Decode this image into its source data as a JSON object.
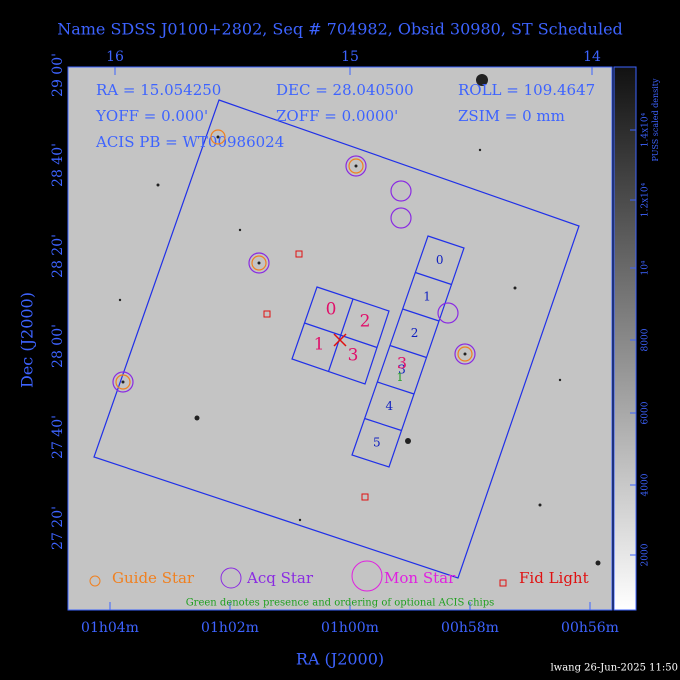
{
  "header": {
    "title": "Name SDSS J0100+2802, Seq # 704982, Obsid 30980, ST Scheduled"
  },
  "axes": {
    "top_ticks": [
      "16",
      "15",
      "14"
    ],
    "left_ticks": [
      "29 00'",
      "28 40'",
      "28 20'",
      "28 00'",
      "27 40'",
      "27 20'"
    ],
    "bottom_ticks": [
      "01h04m",
      "01h02m",
      "01h00m",
      "00h58m",
      "00h56m"
    ],
    "x_label": "RA (J2000)",
    "y_label": "Dec (J2000)"
  },
  "info": [
    [
      "RA = 15.054250",
      "DEC = 28.040500",
      "ROLL = 109.4647"
    ],
    [
      "YOFF =    0.000'",
      "ZOFF =   0.0000'",
      "ZSIM = 0 mm"
    ],
    [
      "ACIS PB = WT00986024"
    ]
  ],
  "chips": {
    "i_labels": [
      "0",
      "2",
      "1",
      "3"
    ],
    "s_labels": [
      "0",
      "1",
      "2",
      "3",
      "4",
      "5"
    ],
    "s_highlight": "3",
    "optional": "1"
  },
  "legend": {
    "items": [
      "Guide Star",
      "Acq Star",
      "Mon Star",
      "Fid Light"
    ],
    "note": "Green denotes presence and ordering of optional ACIS chips"
  },
  "colorbar": {
    "ticks": [
      "2000",
      "4000",
      "6000",
      "8000",
      "10⁴",
      "1.2x10⁴",
      "1.4x10⁴"
    ],
    "label": "PUSS scaled density"
  },
  "footer": "lwang 26-Jun-2025 11:50"
}
